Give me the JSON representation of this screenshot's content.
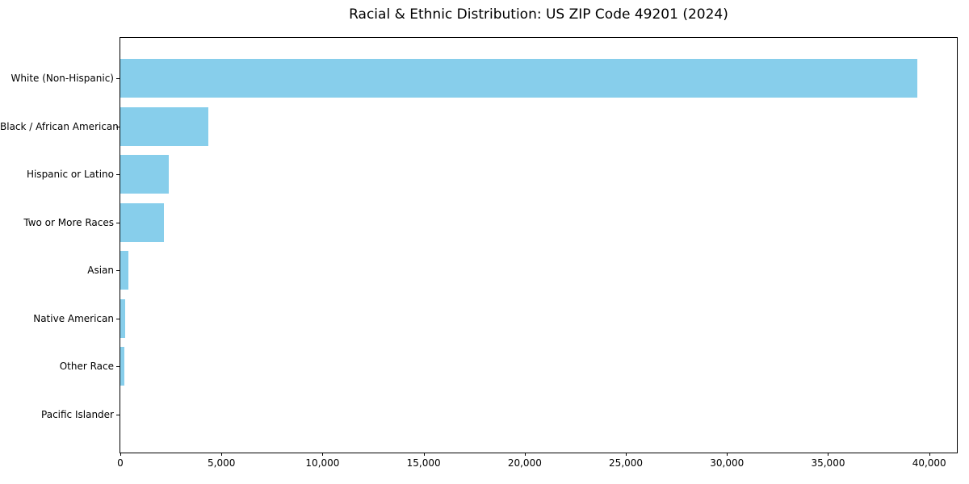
{
  "chart_data": {
    "type": "bar",
    "orientation": "horizontal",
    "title": "Racial & Ethnic Distribution: US ZIP Code 49201 (2024)",
    "categories": [
      "White (Non-Hispanic)",
      "Black / African American",
      "Hispanic or Latino",
      "Two or More Races",
      "Asian",
      "Native American",
      "Other Race",
      "Pacific Islander"
    ],
    "values": [
      39400,
      4350,
      2400,
      2150,
      400,
      250,
      180,
      0
    ],
    "xlabel": "",
    "ylabel": "",
    "xlim": [
      0,
      41370
    ],
    "xticks": [
      0,
      5000,
      10000,
      15000,
      20000,
      25000,
      30000,
      35000,
      40000
    ],
    "xtick_labels": [
      "0",
      "5,000",
      "10,000",
      "15,000",
      "20,000",
      "25,000",
      "30,000",
      "35,000",
      "40,000"
    ],
    "bar_color": "#87CEEB",
    "text_color": "#000000",
    "spine_color": "#000000",
    "background_color": "#ffffff",
    "grid": false,
    "legend": null
  }
}
